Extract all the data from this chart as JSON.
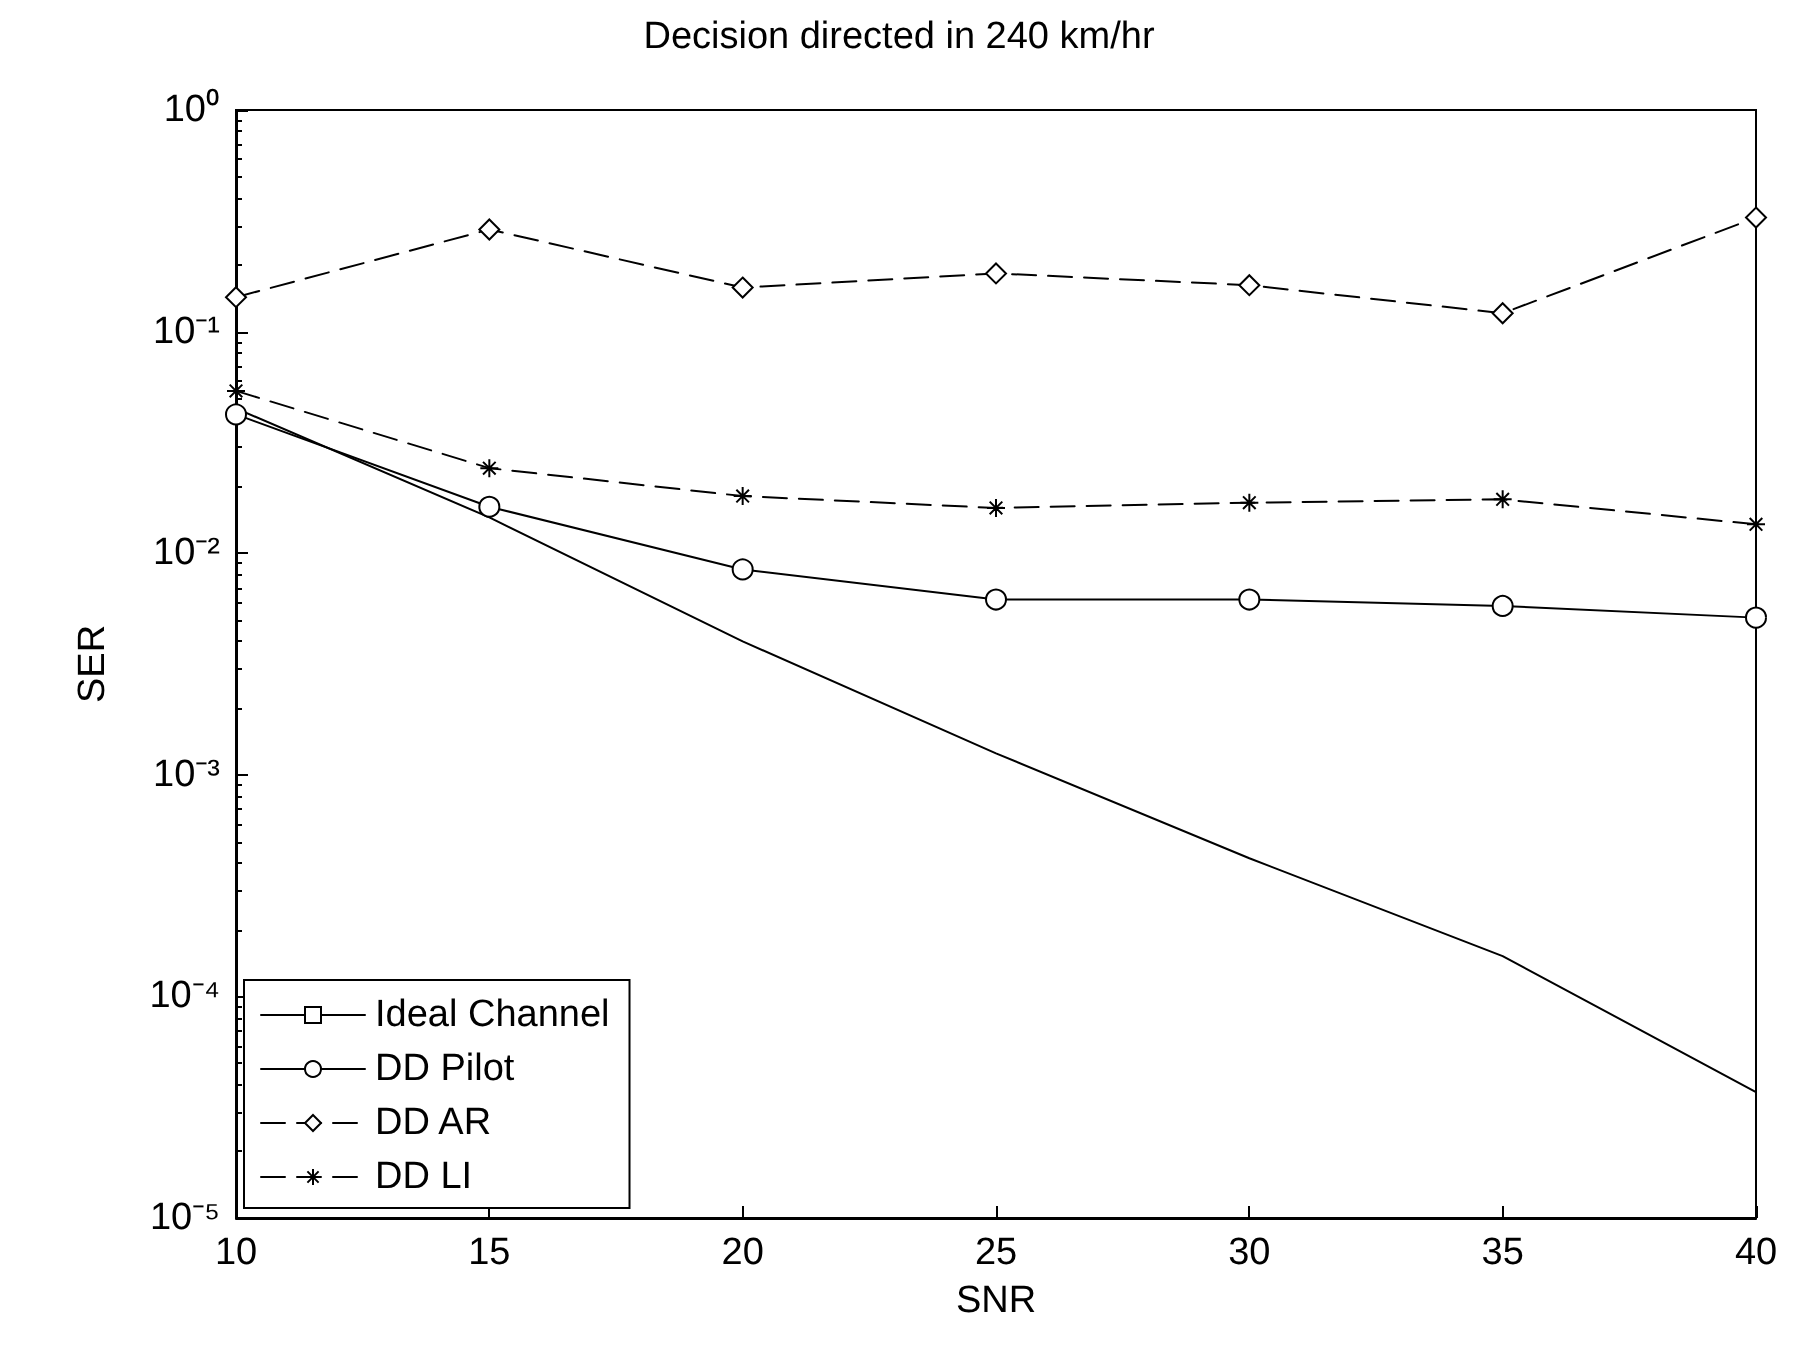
{
  "chart_data": {
    "type": "line",
    "title": "Decision directed in 240 km/hr",
    "xlabel": "SNR",
    "ylabel": "SER",
    "x": [
      10,
      15,
      20,
      25,
      30,
      35,
      40
    ],
    "series": [
      {
        "name": "Ideal Channel",
        "color": "#000000",
        "marker": "none",
        "line_style": "solid",
        "values": [
          0.045,
          0.0145,
          0.004,
          0.00125,
          0.00042,
          0.000152,
          3.7e-05
        ]
      },
      {
        "name": "DD Pilot",
        "color": "#000000",
        "marker": "circle",
        "line_style": "solid",
        "values": [
          0.0423,
          0.0162,
          0.00845,
          0.00618,
          0.00618,
          0.00578,
          0.00512
        ]
      },
      {
        "name": "DD AR",
        "color": "#000000",
        "marker": "diamond",
        "line_style": "dashed",
        "values": [
          0.143,
          0.289,
          0.158,
          0.183,
          0.162,
          0.121,
          0.327
        ]
      },
      {
        "name": "DD LI",
        "color": "#000000",
        "marker": "cross",
        "line_style": "dashed",
        "values": [
          0.054,
          0.0242,
          0.0181,
          0.016,
          0.0169,
          0.0175,
          0.0135
        ]
      }
    ],
    "xlim": [
      10,
      40
    ],
    "xticks": [
      10,
      15,
      20,
      25,
      30,
      35,
      40
    ],
    "log": "y",
    "ylim": [
      1e-05,
      1
    ],
    "yticks": [
      {
        "value": 1e-05,
        "label": "10⁻⁵"
      },
      {
        "value": 0.0001,
        "label": "10⁻⁴"
      },
      {
        "value": 0.001,
        "label": "10⁻³"
      },
      {
        "value": 0.01,
        "label": "10⁻²"
      },
      {
        "value": 0.1,
        "label": "10⁻¹"
      },
      {
        "value": 1,
        "label": "10⁰"
      }
    ],
    "grid": false,
    "legend": "bottom left"
  }
}
